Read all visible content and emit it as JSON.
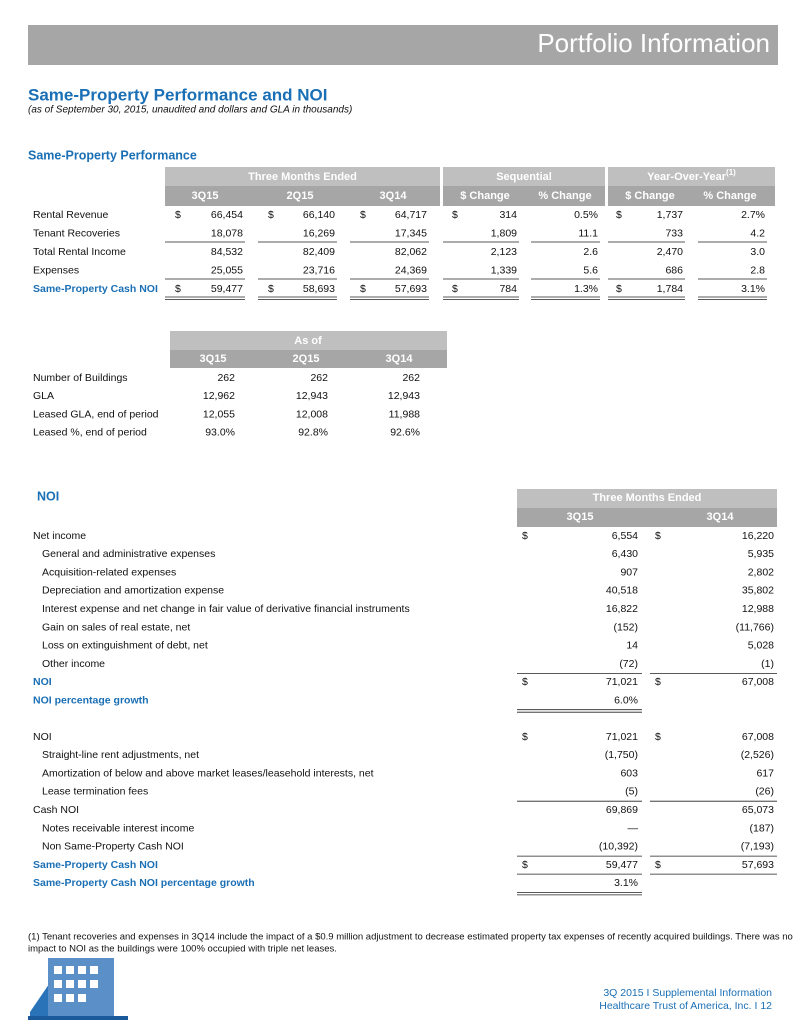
{
  "header": {
    "title": "Portfolio Information"
  },
  "heading": {
    "title": "Same-Property Performance and NOI",
    "subtitle": "(as of September 30, 2015, unaudited and dollars and GLA in thousands)"
  },
  "performance": {
    "title": "Same-Property Performance",
    "groups": [
      "Three Months Ended",
      "Sequential",
      "Year-Over-Year"
    ],
    "footnote_mark": "(1)",
    "columns": [
      "3Q15",
      "2Q15",
      "3Q14",
      "$ Change",
      "% Change",
      "$ Change",
      "% Change"
    ],
    "rows": [
      {
        "label": "Rental Revenue",
        "cells": [
          {
            "cur": "$",
            "v": "66,454"
          },
          {
            "cur": "$",
            "v": "66,140"
          },
          {
            "cur": "$",
            "v": "64,717"
          },
          {
            "cur": "$",
            "v": "314"
          },
          {
            "v": "0.5%"
          },
          {
            "cur": "$",
            "v": "1,737"
          },
          {
            "v": "2.7%"
          }
        ]
      },
      {
        "label": "Tenant Recoveries",
        "cells": [
          {
            "v": "18,078"
          },
          {
            "v": "16,269"
          },
          {
            "v": "17,345"
          },
          {
            "v": "1,809"
          },
          {
            "v": "11.1"
          },
          {
            "v": "733"
          },
          {
            "v": "4.2"
          }
        ]
      },
      {
        "label": "Total Rental Income",
        "cells": [
          {
            "v": "84,532"
          },
          {
            "v": "82,409"
          },
          {
            "v": "82,062"
          },
          {
            "v": "2,123"
          },
          {
            "v": "2.6"
          },
          {
            "v": "2,470"
          },
          {
            "v": "3.0"
          }
        ]
      },
      {
        "label": "Expenses",
        "cells": [
          {
            "v": "25,055"
          },
          {
            "v": "23,716"
          },
          {
            "v": "24,369"
          },
          {
            "v": "1,339"
          },
          {
            "v": "5.6"
          },
          {
            "v": "686"
          },
          {
            "v": "2.8"
          }
        ]
      },
      {
        "label": "Same-Property Cash NOI",
        "cells": [
          {
            "cur": "$",
            "v": "59,477"
          },
          {
            "cur": "$",
            "v": "58,693"
          },
          {
            "cur": "$",
            "v": "57,693"
          },
          {
            "cur": "$",
            "v": "784"
          },
          {
            "v": "1.3%"
          },
          {
            "cur": "$",
            "v": "1,784"
          },
          {
            "v": "3.1%"
          }
        ]
      }
    ]
  },
  "portfolio": {
    "group": "As of",
    "columns": [
      "3Q15",
      "2Q15",
      "3Q14"
    ],
    "rows": [
      {
        "label": "Number of Buildings",
        "cells": [
          "262",
          "262",
          "262"
        ]
      },
      {
        "label": "GLA",
        "cells": [
          "12,962",
          "12,943",
          "12,943"
        ]
      },
      {
        "label": "Leased GLA, end of period",
        "cells": [
          "12,055",
          "12,008",
          "11,988"
        ]
      },
      {
        "label": "Leased %, end of period",
        "cells": [
          "93.0%",
          "92.8%",
          "92.6%"
        ]
      }
    ]
  },
  "noi": {
    "title": "NOI",
    "group": "Three Months Ended",
    "columns": [
      "3Q15",
      "3Q14"
    ],
    "rows": [
      {
        "label": "Net income",
        "cells": [
          {
            "cur": "$",
            "v": "6,554"
          },
          {
            "cur": "$",
            "v": "16,220"
          }
        ]
      },
      {
        "label": "General and administrative expenses",
        "cells": [
          {
            "v": "6,430"
          },
          {
            "v": "5,935"
          }
        ]
      },
      {
        "label": "Acquisition-related expenses",
        "cells": [
          {
            "v": "907"
          },
          {
            "v": "2,802"
          }
        ]
      },
      {
        "label": "Depreciation and amortization expense",
        "cells": [
          {
            "v": "40,518"
          },
          {
            "v": "35,802"
          }
        ]
      },
      {
        "label": "Interest expense and net change in fair value of derivative financial instruments",
        "cells": [
          {
            "v": "16,822"
          },
          {
            "v": "12,988"
          }
        ]
      },
      {
        "label": "Gain on sales of real estate, net",
        "cells": [
          {
            "v": "(152)"
          },
          {
            "v": "(11,766)"
          }
        ]
      },
      {
        "label": "Loss on extinguishment of debt, net",
        "cells": [
          {
            "v": "14"
          },
          {
            "v": "5,028"
          }
        ]
      },
      {
        "label": "Other income",
        "cells": [
          {
            "v": "(72)"
          },
          {
            "v": "(1)"
          }
        ]
      },
      {
        "label": "NOI",
        "cells": [
          {
            "cur": "$",
            "v": "71,021"
          },
          {
            "cur": "$",
            "v": "67,008"
          }
        ]
      },
      {
        "label": "NOI percentage growth",
        "cells": [
          {
            "v": "6.0%"
          }
        ]
      },
      {
        "label": "NOI",
        "cells": [
          {
            "cur": "$",
            "v": "71,021"
          },
          {
            "cur": "$",
            "v": "67,008"
          }
        ]
      },
      {
        "label": "Straight-line rent adjustments, net",
        "cells": [
          {
            "v": "(1,750)"
          },
          {
            "v": "(2,526)"
          }
        ]
      },
      {
        "label": "Amortization of below and above market leases/leasehold interests, net",
        "cells": [
          {
            "v": "603"
          },
          {
            "v": "617"
          }
        ]
      },
      {
        "label": "Lease termination fees",
        "cells": [
          {
            "v": "(5)"
          },
          {
            "v": "(26)"
          }
        ]
      },
      {
        "label": "Cash NOI",
        "cells": [
          {
            "v": "69,869"
          },
          {
            "v": "65,073"
          }
        ]
      },
      {
        "label": "Notes receivable interest income",
        "cells": [
          {
            "v": "—"
          },
          {
            "v": "(187)"
          }
        ]
      },
      {
        "label": "Non Same-Property Cash NOI",
        "cells": [
          {
            "v": "(10,392)"
          },
          {
            "v": "(7,193)"
          }
        ]
      },
      {
        "label": "Same-Property Cash NOI",
        "cells": [
          {
            "cur": "$",
            "v": "59,477"
          },
          {
            "cur": "$",
            "v": "57,693"
          }
        ]
      },
      {
        "label": "Same-Property Cash NOI percentage growth",
        "cells": [
          {
            "v": "3.1%"
          }
        ]
      }
    ]
  },
  "footnote": [
    "(1) Tenant recoveries and expenses in 3Q14 include the impact of a $0.9 million adjustment to decrease estimated property tax expenses of recently acquired buildings. There was no",
    "impact to NOI as the buildings were 100% occupied with triple net leases."
  ],
  "footer": [
    "3Q 2015 I Supplemental Information",
    "Healthcare Trust of America, Inc. I 12"
  ]
}
